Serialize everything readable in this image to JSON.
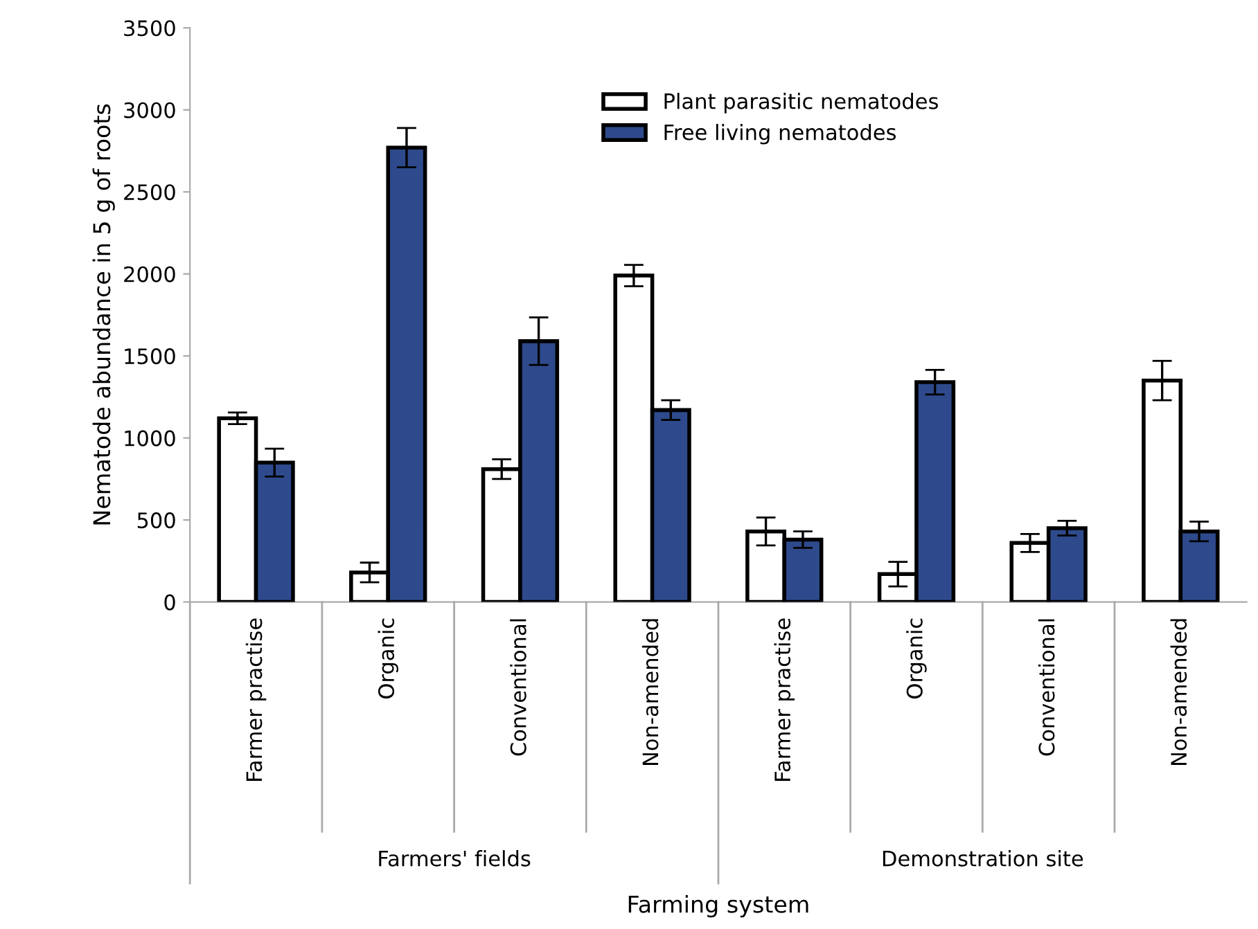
{
  "chart_data": {
    "type": "bar",
    "xlabel": "Farming system",
    "ylabel": "Nematode abundance in 5 g of roots",
    "categories": [
      "Farmer practise",
      "Organic",
      "Conventional",
      "Non-amended",
      "Farmer practise",
      "Organic",
      "Conventional",
      "Non-amended"
    ],
    "series": [
      {
        "name": "Plant parasitic nematodes",
        "color": "#ffffff",
        "values": [
          1120,
          180,
          810,
          1990,
          430,
          170,
          360,
          1350
        ],
        "errors": [
          35,
          60,
          60,
          65,
          85,
          75,
          55,
          120
        ]
      },
      {
        "name": "Free living nematodes",
        "color": "#2e4a8c",
        "values": [
          850,
          2770,
          1590,
          1170,
          380,
          1340,
          450,
          430
        ],
        "errors": [
          85,
          120,
          145,
          60,
          50,
          75,
          45,
          60
        ]
      }
    ],
    "annotations": [
      "Farmers' fields",
      "Demonstration site"
    ],
    "ylim": [
      0,
      3500
    ],
    "yticks": [
      0,
      500,
      1000,
      1500,
      2000,
      2500,
      3000,
      3500
    ],
    "grid": false,
    "legend": "top"
  }
}
